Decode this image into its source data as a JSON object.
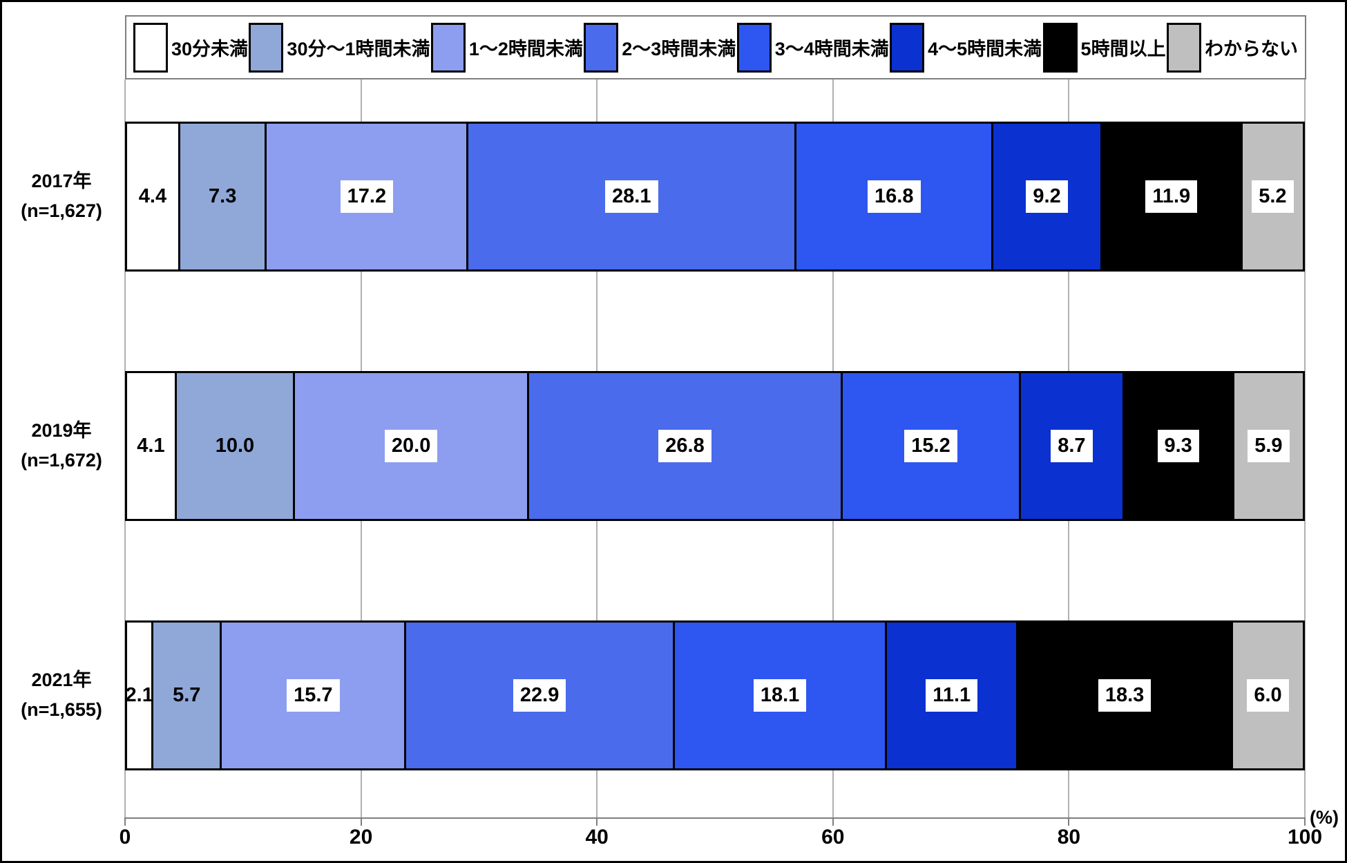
{
  "chart_data": {
    "type": "bar",
    "orientation": "horizontal-stacked",
    "title": "",
    "unit_label": "(%)",
    "legend_position": "top",
    "grid": true,
    "x_axis": {
      "min": 0,
      "max": 100,
      "ticks": [
        0,
        20,
        40,
        60,
        80,
        100
      ]
    },
    "series": [
      {
        "name": "30分未満",
        "color": "#FFFFFF"
      },
      {
        "name": "30分〜1時間未満",
        "color": "#8FA8D8"
      },
      {
        "name": "1〜2時間未満",
        "color": "#8D9EF0"
      },
      {
        "name": "2〜3時間未満",
        "color": "#4A6BEC"
      },
      {
        "name": "3〜4時間未満",
        "color": "#2E56F0"
      },
      {
        "name": "4〜5時間未満",
        "color": "#0B31D0"
      },
      {
        "name": "5時間以上",
        "color": "#000000"
      },
      {
        "name": "わからない",
        "color": "#BFBFBF"
      }
    ],
    "categories": [
      {
        "label": "2017年",
        "n_label": "(n=1,627)",
        "values": [
          4.4,
          7.3,
          17.2,
          28.1,
          16.8,
          9.2,
          11.9,
          5.2
        ]
      },
      {
        "label": "2019年",
        "n_label": "(n=1,672)",
        "values": [
          4.1,
          10.0,
          20.0,
          26.8,
          15.2,
          8.7,
          9.3,
          5.9
        ]
      },
      {
        "label": "2021年",
        "n_label": "(n=1,655)",
        "values": [
          2.1,
          5.7,
          15.7,
          22.9,
          18.1,
          11.1,
          18.3,
          6.0
        ]
      }
    ],
    "value_label_style": {
      "plain_segment_count": 2,
      "boxed_background": "#FFFFFF"
    }
  }
}
